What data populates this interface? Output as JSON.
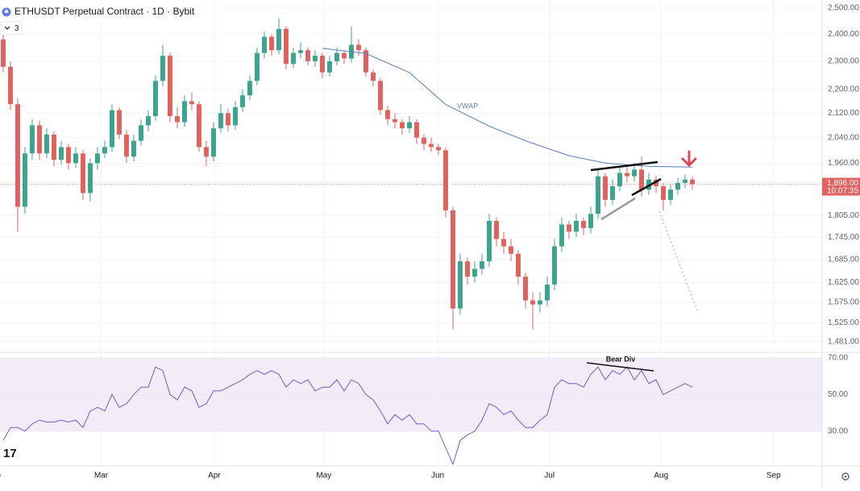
{
  "header": {
    "title": "ETHUSDT Perpetual Contract · 1D · Bybit",
    "indicator_count": "3"
  },
  "chart_data": [
    {
      "type": "candlestick",
      "xlim": [
        -0.44,
        112.89
      ],
      "xticks": [
        {
          "value": -1.3,
          "label": "Feb"
        },
        {
          "value": 13.5,
          "label": "Mar"
        },
        {
          "value": 29.1,
          "label": "Apr"
        },
        {
          "value": 44.2,
          "label": "May"
        },
        {
          "value": 59.9,
          "label": "Jun"
        },
        {
          "value": 75.3,
          "label": "Jul"
        },
        {
          "value": 90.7,
          "label": "Aug"
        },
        {
          "value": 106.2,
          "label": "Sep"
        }
      ],
      "ylim": [
        1460,
        2532
      ],
      "log": true,
      "grid": true,
      "yticks": [
        {
          "value": 2500,
          "label": "2,500.00"
        },
        {
          "value": 2400,
          "label": "2,400.00"
        },
        {
          "value": 2300,
          "label": "2,300.00"
        },
        {
          "value": 2200,
          "label": "2,200.00"
        },
        {
          "value": 2120,
          "label": "2,120.00"
        },
        {
          "value": 2040,
          "label": "2,040.00"
        },
        {
          "value": 1960,
          "label": "1,960.00"
        },
        {
          "value": 1805,
          "label": "1,805.00"
        },
        {
          "value": 1745,
          "label": "1,745.00"
        },
        {
          "value": 1685,
          "label": "1,685.00"
        },
        {
          "value": 1625,
          "label": "1,625.00"
        },
        {
          "value": 1575,
          "label": "1,575.00"
        },
        {
          "value": 1525,
          "label": "1,525.00"
        },
        {
          "value": 1481,
          "label": "1,481.00"
        }
      ],
      "up_color": "#3aa58c",
      "down_color": "#e0625e",
      "open": [
        2380,
        2280,
        2150,
        1830,
        1990,
        2080,
        1990,
        2050,
        1970,
        2010,
        1960,
        1990,
        1870,
        1960,
        1990,
        2010,
        2130,
        2050,
        1980,
        2030,
        2080,
        2110,
        2230,
        2320,
        2110,
        2090,
        2160,
        2150,
        2010,
        1980,
        2070,
        2120,
        2080,
        2140,
        2180,
        2230,
        2330,
        2390,
        2340,
        2420,
        2290,
        2330,
        2340,
        2300,
        2320,
        2260,
        2300,
        2330,
        2310,
        2360,
        2340,
        2260,
        2230,
        2130,
        2100,
        2090,
        2070,
        2090,
        2040,
        2020,
        2010,
        2000,
        1820,
        1560,
        1680,
        1640,
        1660,
        1680,
        1790,
        1740,
        1720,
        1700,
        1640,
        1580,
        1570,
        1580,
        1620,
        1720,
        1780,
        1760,
        1790,
        1770,
        1810,
        1920,
        1850,
        1890,
        1930,
        1920,
        1940,
        1880,
        1910,
        1890,
        1850,
        1880,
        1900,
        1910
      ],
      "high": [
        2420,
        2300,
        2170,
        2010,
        2100,
        2095,
        2070,
        2060,
        2030,
        2020,
        2010,
        2000,
        1975,
        2010,
        2030,
        2150,
        2140,
        2065,
        2050,
        2100,
        2130,
        2250,
        2360,
        2330,
        2140,
        2180,
        2190,
        2160,
        2030,
        2090,
        2150,
        2135,
        2160,
        2200,
        2250,
        2350,
        2410,
        2400,
        2460,
        2430,
        2350,
        2370,
        2350,
        2340,
        2330,
        2320,
        2350,
        2340,
        2430,
        2380,
        2350,
        2270,
        2240,
        2145,
        2120,
        2100,
        2110,
        2100,
        2050,
        2040,
        2020,
        2010,
        1830,
        1700,
        1690,
        1680,
        1700,
        1810,
        1800,
        1760,
        1740,
        1710,
        1650,
        1600,
        1600,
        1640,
        1740,
        1800,
        1790,
        1810,
        1800,
        1830,
        1940,
        1930,
        1910,
        1950,
        1950,
        1960,
        1980,
        1930,
        1920,
        1900,
        1895,
        1915,
        1925,
        1920
      ],
      "low": [
        2260,
        2130,
        1760,
        1810,
        1970,
        1970,
        1975,
        1950,
        1955,
        1940,
        1945,
        1850,
        1845,
        1940,
        1975,
        1995,
        2035,
        1960,
        1965,
        2015,
        2060,
        2095,
        2210,
        2090,
        2070,
        2075,
        2130,
        1995,
        1950,
        1965,
        2055,
        2060,
        2065,
        2125,
        2165,
        2215,
        2310,
        2320,
        2325,
        2270,
        2275,
        2310,
        2285,
        2280,
        2240,
        2245,
        2285,
        2290,
        2295,
        2320,
        2245,
        2210,
        2115,
        2080,
        2070,
        2050,
        2055,
        2020,
        2000,
        1995,
        1985,
        1800,
        1510,
        1545,
        1620,
        1625,
        1645,
        1665,
        1720,
        1700,
        1680,
        1620,
        1560,
        1510,
        1550,
        1565,
        1605,
        1705,
        1740,
        1745,
        1750,
        1755,
        1795,
        1830,
        1835,
        1875,
        1900,
        1905,
        1860,
        1865,
        1870,
        1820,
        1835,
        1865,
        1885,
        1880
      ],
      "close": [
        2280,
        2150,
        1830,
        1990,
        2080,
        1990,
        2050,
        1970,
        2010,
        1960,
        1990,
        1870,
        1960,
        1990,
        2010,
        2130,
        2050,
        1980,
        2030,
        2080,
        2110,
        2230,
        2320,
        2110,
        2090,
        2160,
        2150,
        2010,
        1980,
        2070,
        2120,
        2080,
        2140,
        2180,
        2230,
        2330,
        2390,
        2340,
        2420,
        2290,
        2330,
        2340,
        2300,
        2320,
        2260,
        2300,
        2330,
        2310,
        2360,
        2340,
        2260,
        2230,
        2130,
        2100,
        2090,
        2070,
        2090,
        2040,
        2020,
        2010,
        2000,
        1820,
        1560,
        1680,
        1640,
        1660,
        1680,
        1790,
        1740,
        1720,
        1700,
        1640,
        1580,
        1570,
        1580,
        1620,
        1720,
        1780,
        1760,
        1790,
        1770,
        1810,
        1920,
        1850,
        1890,
        1930,
        1920,
        1940,
        1880,
        1910,
        1890,
        1850,
        1880,
        1900,
        1910,
        1896
      ],
      "series": [
        {
          "name": "VWAP",
          "color": "#5b7fb8",
          "x": [
            44,
            50,
            56,
            61,
            67,
            72,
            78,
            83,
            89,
            95
          ],
          "values": [
            2347,
            2328,
            2259,
            2149,
            2077,
            2030,
            1983,
            1960,
            1950,
            1948
          ]
        }
      ],
      "last_price": {
        "value": 1896,
        "label": "1,896.00"
      },
      "countdown": "10:07:35"
    },
    {
      "type": "line",
      "ylim": [
        11,
        73
      ],
      "yticks": [
        {
          "value": 70,
          "label": "70.00"
        },
        {
          "value": 50,
          "label": "50.00"
        },
        {
          "value": 30,
          "label": "30.00"
        }
      ],
      "band_color": "#ede7f6",
      "series": [
        {
          "color": "#7e57c2",
          "values": [
            25,
            32,
            32,
            30,
            34,
            36,
            35,
            35,
            36,
            35,
            36,
            32,
            41,
            43,
            41,
            50,
            43,
            45,
            50,
            54,
            54,
            65,
            63,
            50,
            47,
            54,
            52,
            43,
            45,
            52,
            52,
            54,
            56,
            58,
            61,
            63,
            61,
            63,
            61,
            54,
            58,
            56,
            58,
            52,
            54,
            54,
            58,
            52,
            58,
            56,
            50,
            47,
            41,
            34,
            39,
            36,
            39,
            34,
            34,
            30,
            30,
            21,
            12,
            25,
            28,
            30,
            36,
            45,
            43,
            39,
            41,
            36,
            32,
            32,
            36,
            39,
            54,
            58,
            56,
            56,
            54,
            61,
            65,
            58,
            63,
            61,
            65,
            58,
            63,
            56,
            58,
            50,
            52,
            54,
            56,
            54
          ]
        }
      ],
      "annotation": "Bear Div"
    }
  ]
}
